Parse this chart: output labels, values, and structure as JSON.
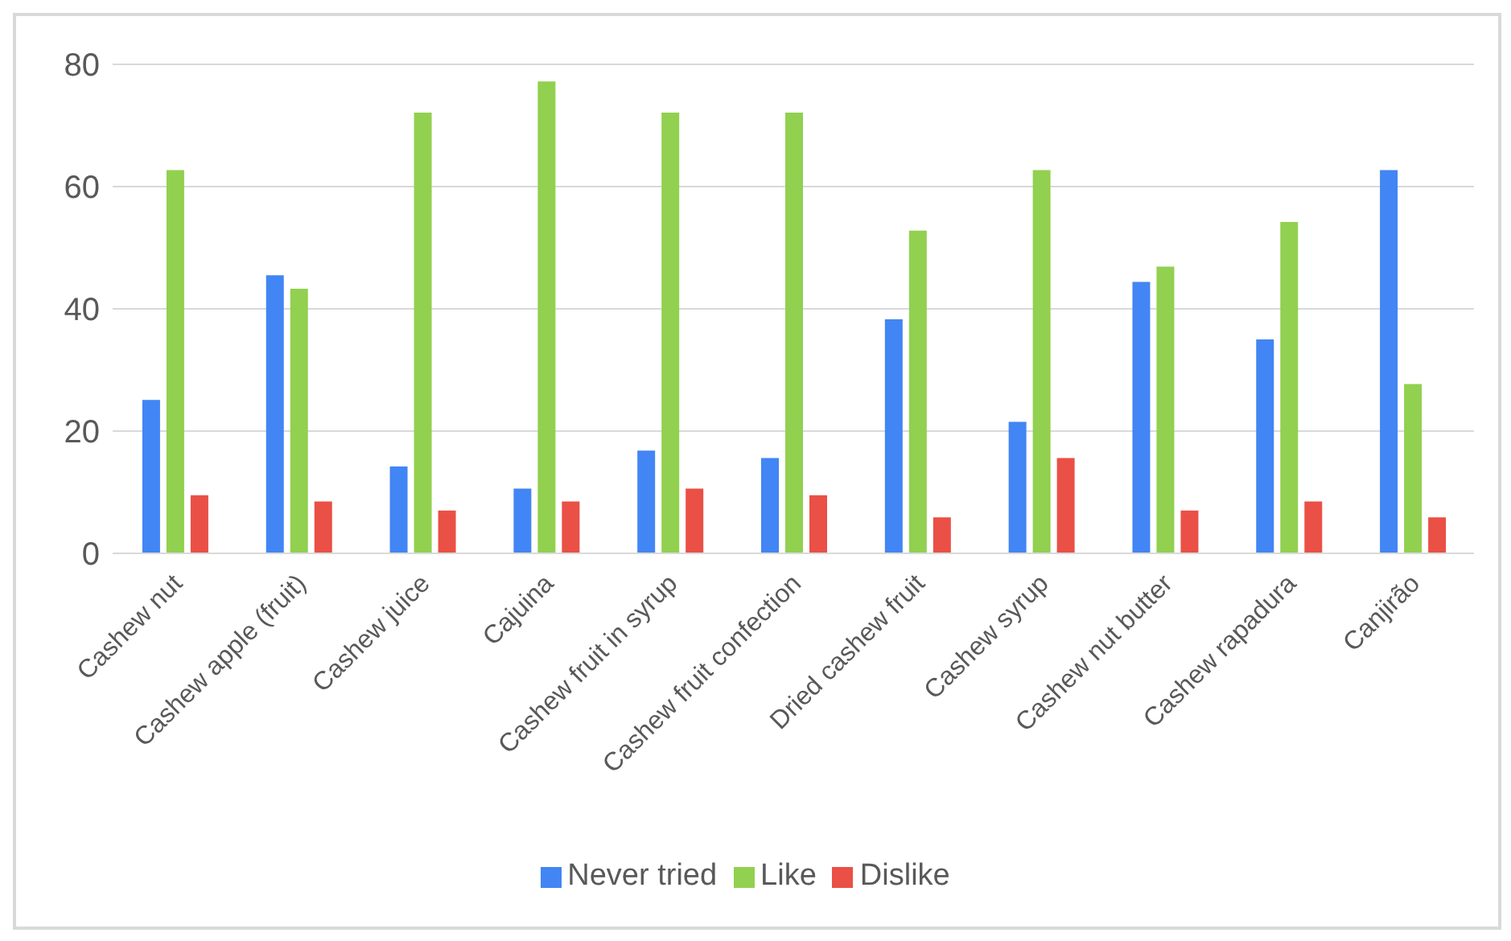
{
  "chart_data": {
    "type": "bar",
    "categories": [
      "Cashew nut",
      "Cashew apple (fruit)",
      "Cashew juice",
      "Cajuina",
      "Cashew fruit in syrup",
      "Cashew fruit confection",
      "Dried cashew fruit",
      "Cashew syrup",
      "Cashew nut butter",
      "Cashew rapadura",
      "Canjirão"
    ],
    "series": [
      {
        "name": "Never tried",
        "color": "#4285f4",
        "values": [
          25.1,
          45.5,
          14.2,
          10.6,
          16.8,
          15.6,
          38.3,
          21.5,
          44.4,
          35.0,
          62.7
        ]
      },
      {
        "name": "Like",
        "color": "#92d050",
        "values": [
          62.7,
          43.3,
          72.1,
          77.2,
          72.1,
          72.1,
          52.8,
          62.7,
          46.9,
          54.2,
          27.7
        ]
      },
      {
        "name": "Dislike",
        "color": "#ea5045",
        "values": [
          9.5,
          8.5,
          7.0,
          8.5,
          10.6,
          9.5,
          5.9,
          15.6,
          7.0,
          8.5,
          5.9
        ]
      }
    ],
    "ylim": [
      0,
      80
    ],
    "yticks": [
      0,
      20,
      40,
      60,
      80
    ],
    "grid": "y",
    "legend": "bottom"
  }
}
